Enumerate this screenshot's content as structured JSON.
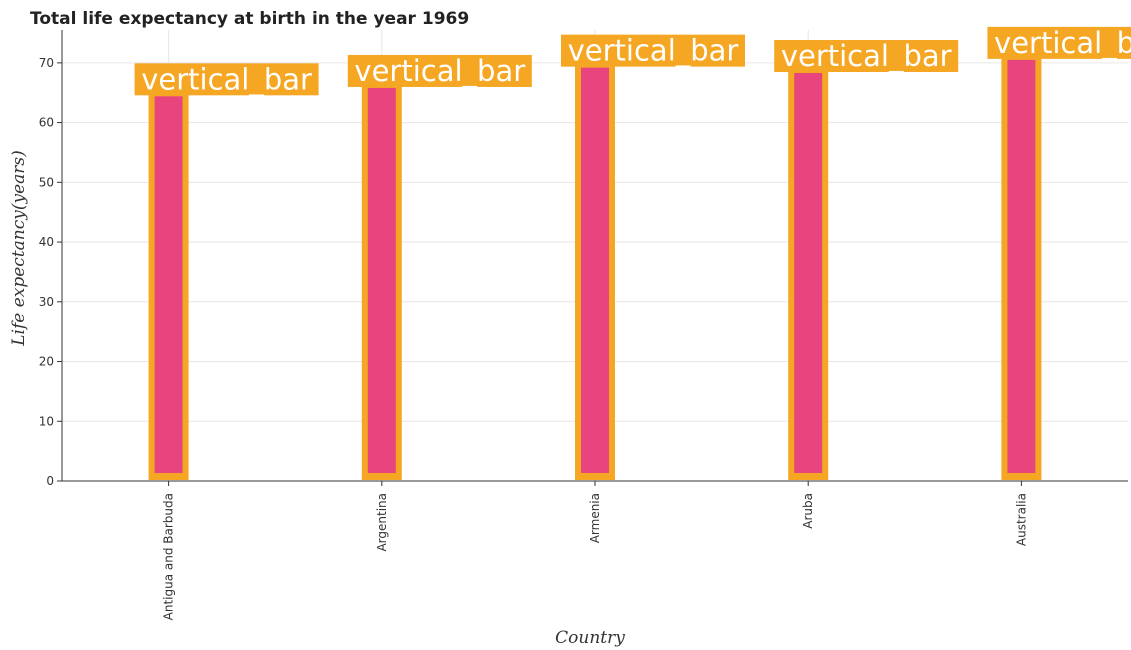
{
  "chart_data": {
    "type": "bar",
    "title": "Total life expectancy at birth in the year 1969",
    "xlabel": "Country",
    "ylabel": "Life expectancy(years)",
    "categories": [
      "Antigua and Barbuda",
      "Argentina",
      "Armenia",
      "Aruba",
      "Australia"
    ],
    "values": [
      64.9,
      66.3,
      69.7,
      68.8,
      71.0
    ],
    "bar_labels": [
      "vertical_bar",
      "vertical_bar",
      "vertical_bar",
      "vertical_bar",
      "vertical_bar"
    ],
    "ylim": [
      0,
      75.5
    ],
    "yticks": [
      0,
      10,
      20,
      30,
      40,
      50,
      60,
      70
    ],
    "grid": true,
    "colors": {
      "bar_fill": "#e8457f",
      "bar_border": "#f5a623",
      "label_box": "#f5a623"
    }
  }
}
